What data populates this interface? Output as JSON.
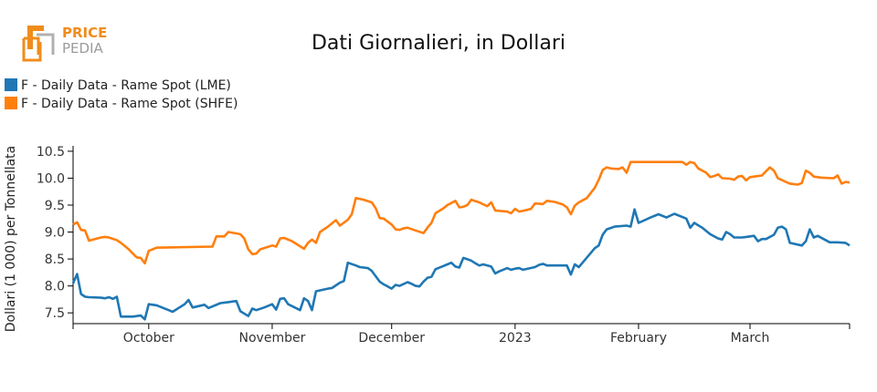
{
  "logo": {
    "top": "PRICE",
    "bottom": "PEDIA"
  },
  "chart_data": {
    "type": "line",
    "title": "Dati Giornalieri, in Dollari",
    "ylabel": "Dollari (1 000) per Tonnellata",
    "xlabel": "",
    "x_range": [
      "2022-09-12",
      "2023-03-16"
    ],
    "ylim": [
      7.3,
      10.6
    ],
    "y_ticks": [
      7.5,
      8.0,
      8.5,
      9.0,
      9.5,
      10.0,
      10.5
    ],
    "y_tick_labels": [
      "7.5",
      "8.0",
      "8.5",
      "9.0",
      "9.5",
      "10.0",
      "10.5"
    ],
    "x_ticks": [
      {
        "date": "2022-10-01",
        "label": "October"
      },
      {
        "date": "2022-11-01",
        "label": "November"
      },
      {
        "date": "2022-12-01",
        "label": "December"
      },
      {
        "date": "2023-01-01",
        "label": "2023"
      },
      {
        "date": "2023-02-01",
        "label": "February"
      },
      {
        "date": "2023-03-01",
        "label": "March"
      }
    ],
    "legend_position": "top-left",
    "grid": false,
    "series": [
      {
        "name": "F - Daily Data - Rame Spot (LME)",
        "color": "#1f77b4",
        "points": [
          [
            "2022-09-12",
            8.05
          ],
          [
            "2022-09-13",
            8.22
          ],
          [
            "2022-09-14",
            7.85
          ],
          [
            "2022-09-15",
            7.8
          ],
          [
            "2022-09-16",
            7.79
          ],
          [
            "2022-09-19",
            7.78
          ],
          [
            "2022-09-20",
            7.77
          ],
          [
            "2022-09-21",
            7.79
          ],
          [
            "2022-09-22",
            7.76
          ],
          [
            "2022-09-23",
            7.8
          ],
          [
            "2022-09-24",
            7.43
          ],
          [
            "2022-09-27",
            7.43
          ],
          [
            "2022-09-28",
            7.44
          ],
          [
            "2022-09-29",
            7.45
          ],
          [
            "2022-09-30",
            7.38
          ],
          [
            "2022-10-01",
            7.66
          ],
          [
            "2022-10-03",
            7.64
          ],
          [
            "2022-10-06",
            7.55
          ],
          [
            "2022-10-07",
            7.52
          ],
          [
            "2022-10-10",
            7.66
          ],
          [
            "2022-10-11",
            7.74
          ],
          [
            "2022-10-12",
            7.6
          ],
          [
            "2022-10-15",
            7.65
          ],
          [
            "2022-10-16",
            7.59
          ],
          [
            "2022-10-19",
            7.68
          ],
          [
            "2022-10-21",
            7.7
          ],
          [
            "2022-10-23",
            7.72
          ],
          [
            "2022-10-24",
            7.53
          ],
          [
            "2022-10-26",
            7.44
          ],
          [
            "2022-10-27",
            7.58
          ],
          [
            "2022-10-28",
            7.55
          ],
          [
            "2022-10-30",
            7.6
          ],
          [
            "2022-11-01",
            7.66
          ],
          [
            "2022-11-02",
            7.56
          ],
          [
            "2022-11-03",
            7.76
          ],
          [
            "2022-11-04",
            7.77
          ],
          [
            "2022-11-05",
            7.66
          ],
          [
            "2022-11-08",
            7.55
          ],
          [
            "2022-11-09",
            7.77
          ],
          [
            "2022-11-10",
            7.72
          ],
          [
            "2022-11-11",
            7.55
          ],
          [
            "2022-11-12",
            7.9
          ],
          [
            "2022-11-15",
            7.95
          ],
          [
            "2022-11-16",
            7.96
          ],
          [
            "2022-11-18",
            8.06
          ],
          [
            "2022-11-19",
            8.09
          ],
          [
            "2022-11-20",
            8.43
          ],
          [
            "2022-11-22",
            8.38
          ],
          [
            "2022-11-23",
            8.35
          ],
          [
            "2022-11-25",
            8.33
          ],
          [
            "2022-11-26",
            8.28
          ],
          [
            "2022-11-28",
            8.08
          ],
          [
            "2022-11-29",
            8.03
          ],
          [
            "2022-11-30",
            7.99
          ],
          [
            "2022-12-01",
            7.95
          ],
          [
            "2022-12-02",
            8.02
          ],
          [
            "2022-12-03",
            8.0
          ],
          [
            "2022-12-05",
            8.07
          ],
          [
            "2022-12-06",
            8.04
          ],
          [
            "2022-12-07",
            8.0
          ],
          [
            "2022-12-08",
            7.99
          ],
          [
            "2022-12-09",
            8.08
          ],
          [
            "2022-12-10",
            8.15
          ],
          [
            "2022-12-11",
            8.17
          ],
          [
            "2022-12-12",
            8.31
          ],
          [
            "2022-12-14",
            8.37
          ],
          [
            "2022-12-15",
            8.4
          ],
          [
            "2022-12-16",
            8.43
          ],
          [
            "2022-12-17",
            8.36
          ],
          [
            "2022-12-18",
            8.34
          ],
          [
            "2022-12-19",
            8.52
          ],
          [
            "2022-12-21",
            8.47
          ],
          [
            "2022-12-22",
            8.42
          ],
          [
            "2022-12-23",
            8.38
          ],
          [
            "2022-12-24",
            8.4
          ],
          [
            "2022-12-26",
            8.36
          ],
          [
            "2022-12-27",
            8.23
          ],
          [
            "2022-12-28",
            8.27
          ],
          [
            "2022-12-29",
            8.3
          ],
          [
            "2022-12-30",
            8.33
          ],
          [
            "2022-12-31",
            8.3
          ],
          [
            "2023-01-01",
            8.32
          ],
          [
            "2023-01-02",
            8.33
          ],
          [
            "2023-01-03",
            8.3
          ],
          [
            "2023-01-06",
            8.35
          ],
          [
            "2023-01-07",
            8.39
          ],
          [
            "2023-01-08",
            8.41
          ],
          [
            "2023-01-09",
            8.38
          ],
          [
            "2023-01-12",
            8.38
          ],
          [
            "2023-01-14",
            8.38
          ],
          [
            "2023-01-15",
            8.21
          ],
          [
            "2023-01-16",
            8.4
          ],
          [
            "2023-01-17",
            8.35
          ],
          [
            "2023-01-21",
            8.7
          ],
          [
            "2023-01-22",
            8.75
          ],
          [
            "2023-01-23",
            8.95
          ],
          [
            "2023-01-24",
            9.05
          ],
          [
            "2023-01-26",
            9.1
          ],
          [
            "2023-01-29",
            9.12
          ],
          [
            "2023-01-30",
            9.1
          ],
          [
            "2023-01-31",
            9.42
          ],
          [
            "2023-02-01",
            9.17
          ],
          [
            "2023-02-04",
            9.27
          ],
          [
            "2023-02-06",
            9.33
          ],
          [
            "2023-02-08",
            9.27
          ],
          [
            "2023-02-10",
            9.34
          ],
          [
            "2023-02-13",
            9.25
          ],
          [
            "2023-02-14",
            9.08
          ],
          [
            "2023-02-15",
            9.17
          ],
          [
            "2023-02-17",
            9.08
          ],
          [
            "2023-02-19",
            8.96
          ],
          [
            "2023-02-21",
            8.88
          ],
          [
            "2023-02-22",
            8.86
          ],
          [
            "2023-02-23",
            9.0
          ],
          [
            "2023-02-24",
            8.96
          ],
          [
            "2023-02-25",
            8.9
          ],
          [
            "2023-02-27",
            8.9
          ],
          [
            "2023-02-28",
            8.91
          ],
          [
            "2023-03-02",
            8.93
          ],
          [
            "2023-03-03",
            8.83
          ],
          [
            "2023-03-04",
            8.87
          ],
          [
            "2023-03-05",
            8.87
          ],
          [
            "2023-03-07",
            8.95
          ],
          [
            "2023-03-08",
            9.08
          ],
          [
            "2023-03-09",
            9.1
          ],
          [
            "2023-03-10",
            9.05
          ],
          [
            "2023-03-11",
            8.8
          ],
          [
            "2023-03-14",
            8.75
          ],
          [
            "2023-03-15",
            8.83
          ],
          [
            "2023-03-16",
            9.05
          ],
          [
            "2023-03-17",
            8.9
          ],
          [
            "2023-03-18",
            8.93
          ],
          [
            "2023-03-21",
            8.81
          ],
          [
            "2023-03-23",
            8.81
          ],
          [
            "2023-03-25",
            8.8
          ],
          [
            "2023-03-26",
            8.75
          ]
        ]
      },
      {
        "name": "F - Daily Data - Rame Spot (SHFE)",
        "color": "#ff7f0e",
        "points": [
          [
            "2022-09-12",
            9.14
          ],
          [
            "2022-09-13",
            9.18
          ],
          [
            "2022-09-14",
            9.04
          ],
          [
            "2022-09-15",
            9.03
          ],
          [
            "2022-09-16",
            8.84
          ],
          [
            "2022-09-19",
            8.9
          ],
          [
            "2022-09-20",
            8.91
          ],
          [
            "2022-09-21",
            8.9
          ],
          [
            "2022-09-23",
            8.85
          ],
          [
            "2022-09-24",
            8.8
          ],
          [
            "2022-09-26",
            8.68
          ],
          [
            "2022-09-27",
            8.6
          ],
          [
            "2022-09-28",
            8.53
          ],
          [
            "2022-09-29",
            8.52
          ],
          [
            "2022-09-30",
            8.42
          ],
          [
            "2022-10-01",
            8.65
          ],
          [
            "2022-10-03",
            8.71
          ],
          [
            "2022-10-17",
            8.73
          ],
          [
            "2022-10-18",
            8.92
          ],
          [
            "2022-10-20",
            8.92
          ],
          [
            "2022-10-21",
            9.0
          ],
          [
            "2022-10-24",
            8.96
          ],
          [
            "2022-10-25",
            8.88
          ],
          [
            "2022-10-26",
            8.68
          ],
          [
            "2022-10-27",
            8.59
          ],
          [
            "2022-10-28",
            8.6
          ],
          [
            "2022-10-29",
            8.68
          ],
          [
            "2022-11-01",
            8.75
          ],
          [
            "2022-11-02",
            8.73
          ],
          [
            "2022-11-03",
            8.88
          ],
          [
            "2022-11-04",
            8.89
          ],
          [
            "2022-11-06",
            8.83
          ],
          [
            "2022-11-09",
            8.69
          ],
          [
            "2022-11-10",
            8.8
          ],
          [
            "2022-11-11",
            8.86
          ],
          [
            "2022-11-12",
            8.8
          ],
          [
            "2022-11-13",
            9.0
          ],
          [
            "2022-11-15",
            9.1
          ],
          [
            "2022-11-17",
            9.22
          ],
          [
            "2022-11-18",
            9.12
          ],
          [
            "2022-11-20",
            9.23
          ],
          [
            "2022-11-21",
            9.33
          ],
          [
            "2022-11-22",
            9.63
          ],
          [
            "2022-11-24",
            9.6
          ],
          [
            "2022-11-26",
            9.55
          ],
          [
            "2022-11-27",
            9.44
          ],
          [
            "2022-11-28",
            9.26
          ],
          [
            "2022-11-29",
            9.25
          ],
          [
            "2022-12-01",
            9.14
          ],
          [
            "2022-12-02",
            9.05
          ],
          [
            "2022-12-03",
            9.04
          ],
          [
            "2022-12-04",
            9.07
          ],
          [
            "2022-12-05",
            9.08
          ],
          [
            "2022-12-07",
            9.03
          ],
          [
            "2022-12-09",
            8.98
          ],
          [
            "2022-12-10",
            9.08
          ],
          [
            "2022-12-11",
            9.17
          ],
          [
            "2022-12-12",
            9.35
          ],
          [
            "2022-12-14",
            9.44
          ],
          [
            "2022-12-15",
            9.5
          ],
          [
            "2022-12-17",
            9.58
          ],
          [
            "2022-12-18",
            9.46
          ],
          [
            "2022-12-19",
            9.47
          ],
          [
            "2022-12-20",
            9.5
          ],
          [
            "2022-12-21",
            9.6
          ],
          [
            "2022-12-23",
            9.55
          ],
          [
            "2022-12-25",
            9.48
          ],
          [
            "2022-12-26",
            9.55
          ],
          [
            "2022-12-27",
            9.4
          ],
          [
            "2022-12-30",
            9.38
          ],
          [
            "2022-12-31",
            9.35
          ],
          [
            "2023-01-01",
            9.43
          ],
          [
            "2023-01-02",
            9.38
          ],
          [
            "2023-01-04",
            9.41
          ],
          [
            "2023-01-05",
            9.43
          ],
          [
            "2023-01-06",
            9.53
          ],
          [
            "2023-01-08",
            9.52
          ],
          [
            "2023-01-09",
            9.58
          ],
          [
            "2023-01-11",
            9.56
          ],
          [
            "2023-01-13",
            9.51
          ],
          [
            "2023-01-14",
            9.46
          ],
          [
            "2023-01-15",
            9.33
          ],
          [
            "2023-01-16",
            9.49
          ],
          [
            "2023-01-17",
            9.55
          ],
          [
            "2023-01-19",
            9.63
          ],
          [
            "2023-01-21",
            9.82
          ],
          [
            "2023-01-22",
            9.97
          ],
          [
            "2023-01-23",
            10.15
          ],
          [
            "2023-01-24",
            10.2
          ],
          [
            "2023-01-25",
            10.18
          ],
          [
            "2023-01-27",
            10.17
          ],
          [
            "2023-01-28",
            10.2
          ],
          [
            "2023-01-29",
            10.1
          ],
          [
            "2023-01-30",
            10.3
          ],
          [
            "2023-02-12",
            10.3
          ],
          [
            "2023-02-13",
            10.25
          ],
          [
            "2023-02-14",
            10.3
          ],
          [
            "2023-02-15",
            10.28
          ],
          [
            "2023-02-16",
            10.18
          ],
          [
            "2023-02-18",
            10.1
          ],
          [
            "2023-02-19",
            10.02
          ],
          [
            "2023-02-20",
            10.04
          ],
          [
            "2023-02-21",
            10.07
          ],
          [
            "2023-02-22",
            10.0
          ],
          [
            "2023-02-24",
            9.99
          ],
          [
            "2023-02-25",
            9.97
          ],
          [
            "2023-02-26",
            10.03
          ],
          [
            "2023-02-27",
            10.04
          ],
          [
            "2023-02-28",
            9.96
          ],
          [
            "2023-03-01",
            10.02
          ],
          [
            "2023-03-02",
            10.03
          ],
          [
            "2023-03-04",
            10.05
          ],
          [
            "2023-03-05",
            10.13
          ],
          [
            "2023-03-06",
            10.2
          ],
          [
            "2023-03-07",
            10.14
          ],
          [
            "2023-03-08",
            10.0
          ],
          [
            "2023-03-10",
            9.93
          ],
          [
            "2023-03-11",
            9.9
          ],
          [
            "2023-03-13",
            9.88
          ],
          [
            "2023-03-14",
            9.91
          ],
          [
            "2023-03-15",
            10.14
          ],
          [
            "2023-03-16",
            10.1
          ],
          [
            "2023-03-17",
            10.03
          ],
          [
            "2023-03-19",
            10.01
          ],
          [
            "2023-03-22",
            10.0
          ],
          [
            "2023-03-23",
            10.05
          ],
          [
            "2023-03-24",
            9.9
          ],
          [
            "2023-03-25",
            9.93
          ],
          [
            "2023-03-26",
            9.92
          ]
        ]
      }
    ]
  }
}
